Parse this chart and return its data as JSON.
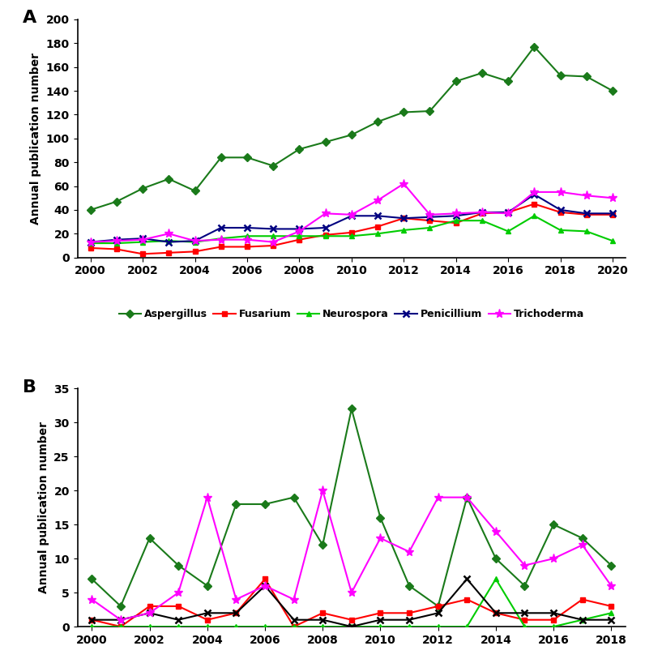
{
  "panel_A": {
    "years": [
      2000,
      2001,
      2002,
      2003,
      2004,
      2005,
      2006,
      2007,
      2008,
      2009,
      2010,
      2011,
      2012,
      2013,
      2014,
      2015,
      2016,
      2017,
      2018,
      2019,
      2020
    ],
    "Aspergillus": [
      40,
      47,
      58,
      66,
      56,
      84,
      84,
      77,
      91,
      97,
      103,
      114,
      122,
      123,
      148,
      155,
      148,
      177,
      153,
      152,
      140
    ],
    "Fusarium": [
      8,
      7,
      3,
      4,
      5,
      9,
      9,
      10,
      15,
      19,
      21,
      26,
      33,
      31,
      29,
      37,
      38,
      45,
      38,
      36,
      36
    ],
    "Neurospora": [
      12,
      12,
      13,
      14,
      13,
      16,
      18,
      18,
      18,
      18,
      18,
      20,
      23,
      25,
      31,
      31,
      22,
      35,
      23,
      22,
      14
    ],
    "Penicillium": [
      13,
      15,
      16,
      13,
      14,
      25,
      25,
      24,
      24,
      25,
      35,
      35,
      33,
      34,
      35,
      38,
      38,
      53,
      40,
      37,
      37
    ],
    "Trichoderma": [
      13,
      14,
      15,
      20,
      14,
      15,
      15,
      13,
      22,
      37,
      36,
      48,
      62,
      36,
      37,
      38,
      37,
      55,
      55,
      52,
      50
    ],
    "ylim": [
      0,
      200
    ],
    "yticks": [
      0,
      20,
      40,
      60,
      80,
      100,
      120,
      140,
      160,
      180,
      200
    ],
    "xticks": [
      2000,
      2002,
      2004,
      2006,
      2008,
      2010,
      2012,
      2014,
      2016,
      2018,
      2020
    ],
    "ylabel": "Annual publication number",
    "panel_label": "A"
  },
  "panel_B": {
    "years": [
      2000,
      2001,
      2002,
      2003,
      2004,
      2005,
      2006,
      2007,
      2008,
      2009,
      2010,
      2011,
      2012,
      2013,
      2014,
      2015,
      2016,
      2017,
      2018
    ],
    "Aspergillus": [
      7,
      3,
      13,
      9,
      6,
      18,
      18,
      19,
      12,
      32,
      16,
      6,
      3,
      19,
      10,
      6,
      15,
      13,
      9
    ],
    "Fusarium": [
      1,
      0,
      3,
      3,
      1,
      2,
      7,
      0,
      2,
      1,
      2,
      2,
      3,
      4,
      2,
      1,
      1,
      4,
      3
    ],
    "Neurospora": [
      0,
      0,
      0,
      0,
      0,
      0,
      0,
      0,
      0,
      0,
      0,
      0,
      0,
      0,
      7,
      0,
      0,
      1,
      2
    ],
    "Penicillium": [
      1,
      1,
      2,
      1,
      2,
      2,
      6,
      1,
      1,
      0,
      1,
      1,
      2,
      7,
      2,
      2,
      2,
      1,
      1
    ],
    "Trichoderma": [
      4,
      1,
      2,
      5,
      19,
      4,
      6,
      4,
      20,
      5,
      13,
      11,
      19,
      19,
      14,
      9,
      10,
      12,
      6
    ],
    "ylim": [
      0,
      35
    ],
    "yticks": [
      0,
      5,
      10,
      15,
      20,
      25,
      30,
      35
    ],
    "xticks": [
      2000,
      2002,
      2004,
      2006,
      2008,
      2010,
      2012,
      2014,
      2016,
      2018
    ],
    "ylabel": "Annual publication number",
    "panel_label": "B"
  },
  "series_A": [
    {
      "name": "Aspergillus",
      "color": "#1a7a1a",
      "marker": "D",
      "markersize": 5
    },
    {
      "name": "Fusarium",
      "color": "#ff0000",
      "marker": "s",
      "markersize": 5
    },
    {
      "name": "Neurospora",
      "color": "#00cc00",
      "marker": "^",
      "markersize": 5
    },
    {
      "name": "Penicillium",
      "color": "#000080",
      "marker": "x",
      "markersize": 6
    },
    {
      "name": "Trichoderma",
      "color": "#ff00ff",
      "marker": "*",
      "markersize": 8
    }
  ],
  "series_B": [
    {
      "name": "Aspergillus",
      "color": "#1a7a1a",
      "marker": "D",
      "markersize": 5
    },
    {
      "name": "Fusarium",
      "color": "#ff0000",
      "marker": "s",
      "markersize": 5
    },
    {
      "name": "Neurospora",
      "color": "#00cc00",
      "marker": "^",
      "markersize": 5
    },
    {
      "name": "Penicillium",
      "color": "#000000",
      "marker": "x",
      "markersize": 6
    },
    {
      "name": "Trichoderma",
      "color": "#ff00ff",
      "marker": "*",
      "markersize": 8
    }
  ],
  "linewidth": 1.5,
  "tick_fontsize": 10,
  "label_fontsize": 10,
  "panel_label_fontsize": 16,
  "legend_fontsize": 9
}
